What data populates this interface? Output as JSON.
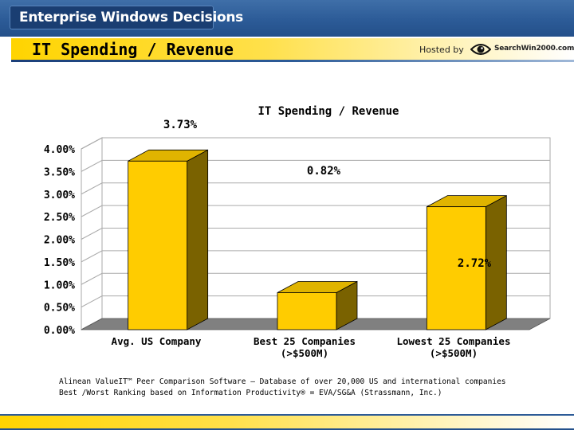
{
  "header": {
    "brand": "Enterprise Windows Decisions",
    "page_title": "IT Spending / Revenue",
    "hosted_by": "Hosted by",
    "sponsor_logo_text": "SearchWin2000.com"
  },
  "chart_data": {
    "type": "bar",
    "title": "IT Spending / Revenue",
    "categories": [
      [
        "Avg. US Company"
      ],
      [
        "Best 25 Companies",
        "(>$500M)"
      ],
      [
        "Lowest 25 Companies",
        "(>$500M)"
      ]
    ],
    "values": [
      3.73,
      0.82,
      2.72
    ],
    "data_labels": [
      "3.73%",
      "0.82%",
      "2.72%"
    ],
    "y_ticks": [
      "0.00%",
      "0.50%",
      "1.00%",
      "1.50%",
      "2.00%",
      "2.50%",
      "3.00%",
      "3.50%",
      "4.00%"
    ],
    "ylim": [
      0,
      4
    ],
    "style": "3d-bar",
    "colors": {
      "bar_front": "#ffcc00",
      "bar_top": "#e0b400",
      "bar_side": "#7a6200",
      "floor": "#808080",
      "grid": "#aaaaaa"
    }
  },
  "footer": {
    "source_line_1": "Alinean ValueIT™ Peer Comparison Software – Database of over 20,000 US and international companies",
    "source_line_2": "Best /Worst Ranking based on Information Productivity® = EVA/SG&A   (Strassmann, Inc.)"
  }
}
